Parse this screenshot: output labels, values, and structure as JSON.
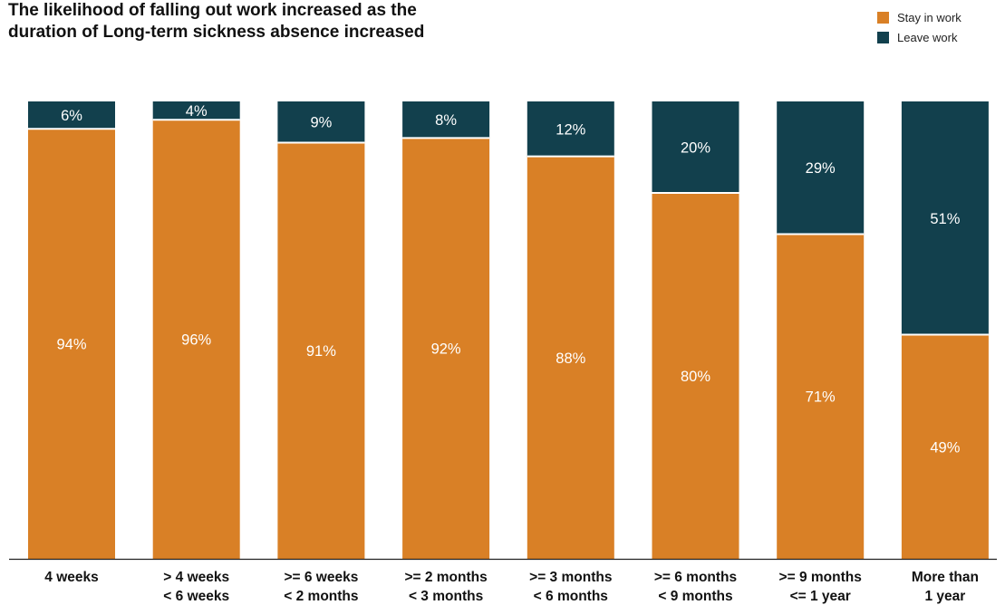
{
  "chart_data": {
    "type": "bar",
    "stacked": true,
    "title": "The likelihood of falling out work increased as the duration of Long-term sickness absence increased",
    "xlabel": "",
    "ylabel": "",
    "ylim": [
      0,
      100
    ],
    "grid": false,
    "legend_position": "top-right",
    "categories": [
      [
        "4 weeks"
      ],
      [
        "> 4 weeks",
        "< 6 weeks"
      ],
      [
        ">= 6 weeks",
        "< 2 months"
      ],
      [
        ">= 2 months",
        "< 3 months"
      ],
      [
        ">= 3 months",
        "< 6 months"
      ],
      [
        ">= 6 months",
        "< 9 months"
      ],
      [
        ">= 9 months",
        "<= 1 year"
      ],
      [
        "More than",
        "1 year"
      ]
    ],
    "series": [
      {
        "name": "Stay in work",
        "color": "#D98026",
        "values": [
          94,
          96,
          91,
          92,
          88,
          80,
          71,
          49
        ],
        "labels": [
          "94%",
          "96%",
          "91%",
          "92%",
          "88%",
          "80%",
          "71%",
          "49%"
        ]
      },
      {
        "name": "Leave work",
        "color": "#12404D",
        "values": [
          6,
          4,
          9,
          8,
          12,
          20,
          29,
          51
        ],
        "labels": [
          "6%",
          "4%",
          "9%",
          "8%",
          "12%",
          "20%",
          "29%",
          "51%"
        ]
      }
    ]
  }
}
